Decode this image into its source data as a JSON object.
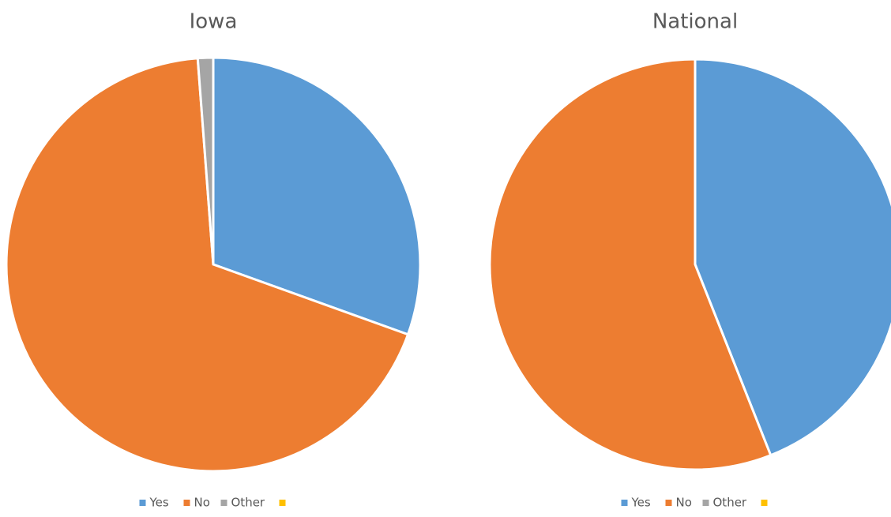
{
  "chart_data": [
    {
      "type": "pie",
      "title": "Iowa",
      "categories": [
        "Yes",
        "No",
        "Other",
        null
      ],
      "values": [
        30.5,
        68.3,
        1.2,
        0
      ],
      "colors": [
        "#5b9bd5",
        "#ed7d31",
        "#a5a5a5",
        "#ffc000"
      ],
      "legend": "bottom"
    },
    {
      "type": "pie",
      "title": "National",
      "categories": [
        "Yes",
        "No",
        "Other",
        null
      ],
      "values": [
        44,
        56,
        0,
        0
      ],
      "colors": [
        "#5b9bd5",
        "#ed7d31",
        "#a5a5a5",
        "#ffc000"
      ],
      "legend": "bottom"
    }
  ]
}
